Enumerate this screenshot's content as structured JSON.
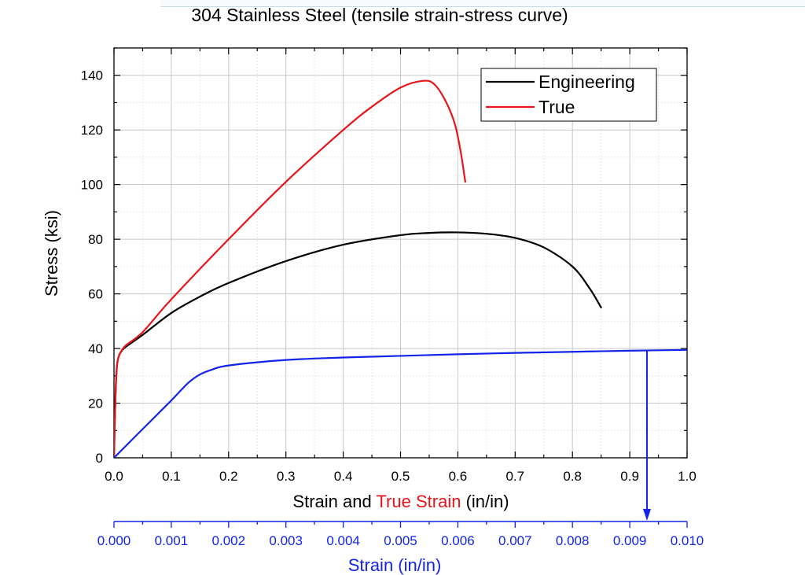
{
  "chart_data": {
    "type": "line",
    "title": "304 Stainless Steel (tensile strain-stress curve)",
    "xlabel_parts": [
      {
        "text": "Strain and ",
        "color": "#000000"
      },
      {
        "text": "True Strain",
        "color": "#e8141b"
      },
      {
        "text": " (in/in)",
        "color": "#000000"
      }
    ],
    "ylabel": "Stress (ksi)",
    "xlim": [
      0,
      1.0
    ],
    "ylim": [
      0,
      150
    ],
    "x_ticks": [
      "0.0",
      "0.1",
      "0.2",
      "0.3",
      "0.4",
      "0.5",
      "0.6",
      "0.7",
      "0.8",
      "0.9",
      "1.0"
    ],
    "y_ticks": [
      "0",
      "20",
      "40",
      "60",
      "80",
      "100",
      "120",
      "140"
    ],
    "grid": true,
    "legend_position": "top-right",
    "series": [
      {
        "name": "Engineering",
        "color": "#000000",
        "axis": "primary",
        "x": [
          0,
          0.002,
          0.004,
          0.006,
          0.01,
          0.02,
          0.05,
          0.1,
          0.15,
          0.2,
          0.3,
          0.4,
          0.5,
          0.55,
          0.6,
          0.65,
          0.7,
          0.75,
          0.8,
          0.83,
          0.85
        ],
        "y": [
          0,
          18,
          30,
          35,
          38,
          40.5,
          45,
          53,
          59,
          64,
          72,
          78,
          81.5,
          82.3,
          82.5,
          82,
          80.5,
          77,
          70,
          62,
          55
        ]
      },
      {
        "name": "True",
        "color": "#e8141b",
        "axis": "primary",
        "x": [
          0,
          0.002,
          0.004,
          0.006,
          0.01,
          0.02,
          0.05,
          0.1,
          0.2,
          0.3,
          0.4,
          0.45,
          0.5,
          0.54,
          0.56,
          0.58,
          0.595,
          0.605,
          0.613
        ],
        "y": [
          0,
          18,
          30,
          35,
          38,
          41,
          46,
          58,
          80,
          101,
          120,
          128.5,
          135.5,
          138,
          136.5,
          130,
          122,
          112,
          101
        ]
      },
      {
        "name": "",
        "color": "#1224e8",
        "axis": "secondary",
        "x": [
          0,
          0.0005,
          0.001,
          0.0013,
          0.0015,
          0.0017,
          0.002,
          0.003,
          0.004,
          0.005,
          0.006,
          0.007,
          0.008,
          0.009,
          0.01
        ],
        "y": [
          0,
          10.5,
          21,
          27.5,
          30.5,
          32.2,
          33.8,
          35.8,
          36.7,
          37.3,
          37.9,
          38.4,
          38.8,
          39.2,
          39.5
        ]
      }
    ],
    "secondary_x_axis": {
      "xlabel": "Strain (in/in)",
      "color": "#1224e8",
      "xlim": [
        0,
        0.01
      ],
      "x_ticks": [
        "0.000",
        "0.001",
        "0.002",
        "0.003",
        "0.004",
        "0.005",
        "0.006",
        "0.007",
        "0.008",
        "0.009",
        "0.010"
      ]
    },
    "annotation_arrow": {
      "x": 0.0093,
      "y": 39.3,
      "color": "#1224e8"
    }
  }
}
